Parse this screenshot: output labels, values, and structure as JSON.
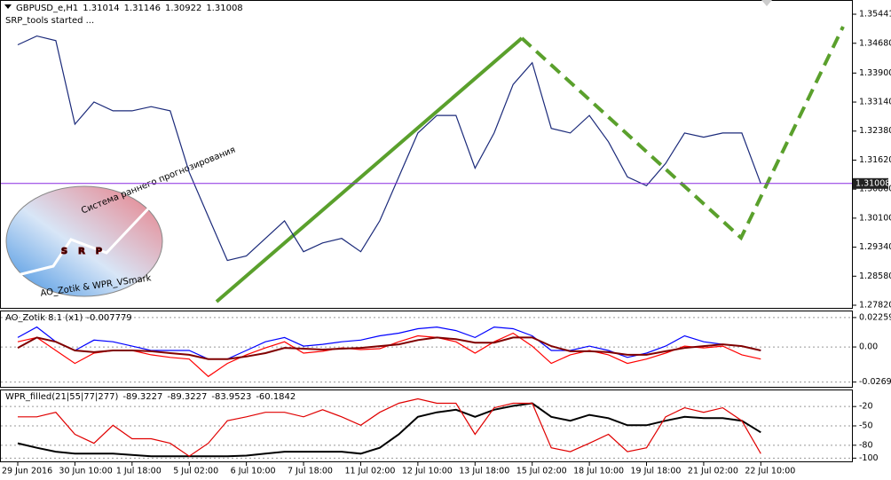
{
  "chart_data": [
    {
      "type": "line",
      "title": "GBPUSD_e,H1",
      "quote": [
        1.31014,
        1.31146,
        1.30922,
        1.31008
      ],
      "annotations": [
        "SRP_tools started ...",
        "Система раннего прогнозирования",
        "AO_Zotik & WPR_VSmark",
        "SRP"
      ],
      "categories": [
        "29 Jun 2016",
        null,
        null,
        "30 Jun 10:00",
        null,
        null,
        "1 Jul 18:00",
        null,
        null,
        "5 Jul 02:00",
        null,
        null,
        "6 Jul 10:00",
        null,
        null,
        "7 Jul 18:00",
        null,
        null,
        "11 Jul 02:00",
        null,
        null,
        "12 Jul 10:00",
        null,
        null,
        "13 Jul 18:00",
        null,
        null,
        "15 Jul 02:00",
        null,
        null,
        "18 Jul 10:00",
        null,
        null,
        "19 Jul 18:00",
        null,
        null,
        "21 Jul 02:00",
        null,
        null,
        "22 Jul 10:00"
      ],
      "series": [
        {
          "color": "#1b2a7a",
          "values": [
            1.3464,
            1.3487,
            1.3475,
            1.3256,
            1.3314,
            1.3291,
            1.3291,
            1.3302,
            1.3291,
            1.313,
            1.3014,
            1.2899,
            1.2911,
            1.2957,
            1.3003,
            1.2922,
            1.2945,
            1.2957,
            1.2922,
            1.3003,
            1.3118,
            1.3233,
            1.3279,
            1.3279,
            1.3141,
            1.3233,
            1.336,
            1.3417,
            1.3245,
            1.3233,
            1.3279,
            1.321,
            1.3118,
            1.3095,
            1.3153,
            1.3233,
            1.3222,
            1.3233,
            1.3233,
            1.31
          ]
        }
      ],
      "last_price": 1.31008,
      "ylim": [
        1.2775,
        1.3579
      ],
      "yticks": [
        1.35441,
        {
          "value": 1.3468,
          "label": "1.34680"
        },
        {
          "value": 1.339,
          "label": "1.33900"
        },
        {
          "value": 1.3314,
          "label": "1.33140"
        },
        {
          "value": 1.3238,
          "label": "1.32380"
        },
        {
          "value": 1.3162,
          "label": "1.31620"
        },
        {
          "value": 1.3086,
          "label": "1.30860"
        },
        {
          "value": 1.301,
          "label": "1.30100"
        },
        {
          "value": 1.2934,
          "label": "1.29340"
        },
        {
          "value": 1.2858,
          "label": "1.28580"
        },
        {
          "value": 1.2782,
          "label": "1.27820"
        }
      ],
      "grid": false
    },
    {
      "type": "line",
      "title": "AO_Zotik 8.1 (x1)",
      "current_value": -0.007779,
      "series": [
        {
          "color": "#0000ff",
          "values": [
            0.0073,
            0.0153,
            0.004,
            -0.0027,
            0.0053,
            0.004,
            0.0007,
            -0.0027,
            -0.0027,
            -0.0027,
            -0.0093,
            -0.0093,
            -0.0027,
            0.004,
            0.0073,
            0.0007,
            0.002,
            0.004,
            0.0053,
            0.0086,
            0.0106,
            0.014,
            0.0153,
            0.0126,
            0.0073,
            0.0153,
            0.014,
            0.0086,
            -0.0027,
            -0.0027,
            0.0007,
            -0.0027,
            -0.008,
            -0.0047,
            0.0007,
            0.0086,
            0.004,
            0.002,
            0.0007,
            -0.0027
          ]
        },
        {
          "color": "#ff0000",
          "values": [
            0.004,
            0.0073,
            -0.0027,
            -0.0126,
            -0.0047,
            -0.0027,
            -0.0027,
            -0.006,
            -0.008,
            -0.0093,
            -0.0226,
            -0.0126,
            -0.006,
            -0.0007,
            0.004,
            -0.0047,
            -0.0033,
            -0.0007,
            -0.002,
            -0.0013,
            0.004,
            0.0086,
            0.0073,
            0.004,
            -0.0047,
            0.004,
            0.0106,
            0.0007,
            -0.0126,
            -0.006,
            -0.0027,
            -0.006,
            -0.0126,
            -0.0093,
            -0.0047,
            0.0007,
            -0.0007,
            0.0007,
            -0.006,
            -0.0093
          ]
        },
        {
          "color": "#800000",
          "values": [
            -0.0007,
            0.0073,
            0.004,
            -0.0027,
            -0.004,
            -0.0027,
            -0.0027,
            -0.0033,
            -0.0047,
            -0.006,
            -0.0093,
            -0.0093,
            -0.0073,
            -0.0047,
            -0.0007,
            -0.0013,
            -0.002,
            -0.0013,
            -0.0007,
            0.0007,
            0.002,
            0.0053,
            0.0073,
            0.006,
            0.0033,
            0.0033,
            0.0073,
            0.0073,
            0.0007,
            -0.0033,
            -0.0033,
            -0.004,
            -0.006,
            -0.006,
            -0.0033,
            -0.0007,
            0.0007,
            0.002,
            0.0007,
            -0.0027
          ]
        }
      ],
      "ylim": [
        -0.0306,
        0.0273
      ],
      "yticks": [
        0.022596,
        {
          "value": 0,
          "label": "0.00"
        },
        -0.026923
      ],
      "grid": true
    },
    {
      "type": "line",
      "title": "WPR_filled(21|55|77|277)",
      "current_values": [
        -89.3227,
        -89.3227,
        -83.9523,
        -60.1842
      ],
      "series": [
        {
          "color": "#000000",
          "values": [
            -77,
            -84,
            -90,
            -93,
            -93,
            -93,
            -95,
            -97,
            -97,
            -97,
            -97,
            -97,
            -96,
            -93,
            -90,
            -90,
            -90,
            -90,
            -93,
            -84,
            -63,
            -36,
            -29,
            -25,
            -36,
            -25,
            -19,
            -15,
            -36,
            -42,
            -33,
            -38,
            -49,
            -49,
            -42,
            -36,
            -38,
            -38,
            -42,
            -60
          ]
        },
        {
          "color": "#e00000",
          "values": [
            -36,
            -36,
            -29,
            -63,
            -77,
            -49,
            -70,
            -70,
            -77,
            -97,
            -77,
            -42,
            -36,
            -29,
            -29,
            -36,
            -25,
            -36,
            -49,
            -29,
            -15,
            -8,
            -15,
            -15,
            -63,
            -22,
            -15,
            -15,
            -84,
            -90,
            -77,
            -63,
            -90,
            -84,
            -36,
            -22,
            -29,
            -22,
            -42,
            -93
          ]
        }
      ],
      "ylim": [
        -105,
        5
      ],
      "yticks": [
        -20,
        -50,
        -80,
        -100
      ],
      "grid": true
    }
  ]
}
